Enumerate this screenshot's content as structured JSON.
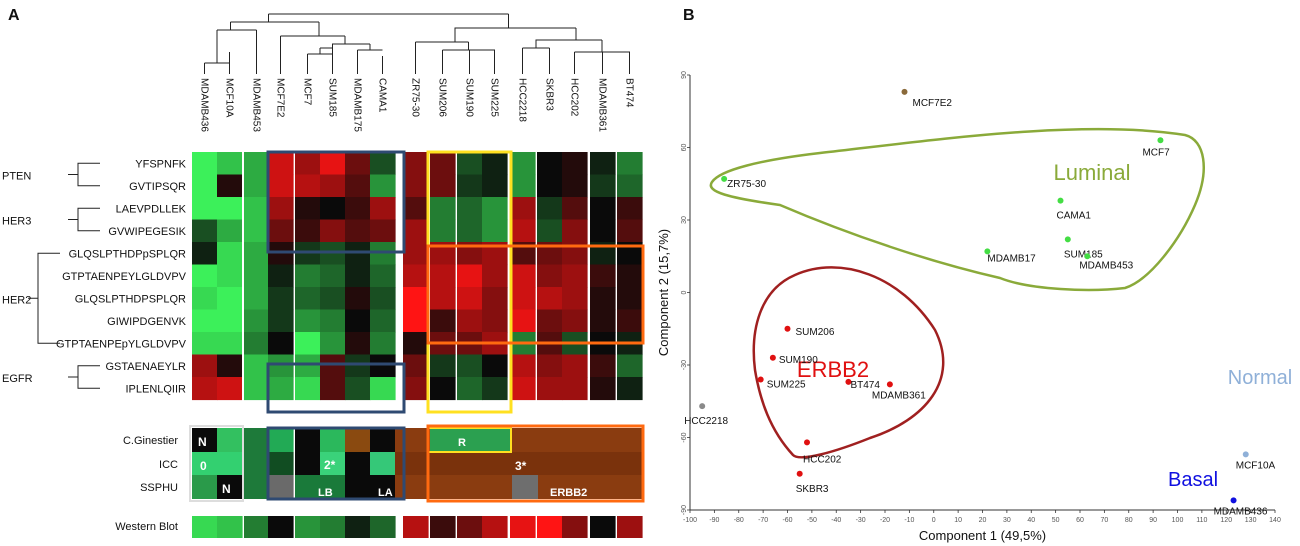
{
  "colors": {
    "green_hi": "#3cf05a",
    "green_mid": "#1e8c3a",
    "black": "#0a0a0a",
    "red_mid": "#8a1212",
    "red_hi": "#ff1a1a",
    "brown": "#8a3e12",
    "navy_box": "#2f4a72",
    "yellow_box": "#ffe020",
    "orange_box": "#ff6a10",
    "luminal": "#8aaa3a",
    "erbb2": "#e01010",
    "normal": "#8fb0d8",
    "basal": "#1010e0",
    "hull_luminal": "#8aaa3a",
    "hull_erbb2": "#a02020"
  },
  "panelA": {
    "label": "A",
    "columns": [
      "MDAMB436",
      "MCF10A",
      "MDAMB453",
      "MCF7E2",
      "MCF7",
      "SUM185",
      "MDAMB175",
      "CAMA1",
      "ZR75-30",
      "SUM206",
      "SUM190",
      "SUM225",
      "HCC2218",
      "SKBR3",
      "HCC202",
      "MDAMB361",
      "BT474"
    ],
    "groups": [
      {
        "name": "PTEN",
        "peptides": [
          "YFSPNFK",
          "GVTIPSQR"
        ]
      },
      {
        "name": "HER3",
        "peptides": [
          "LAEVPDLLEK",
          "GVWIPEGESIK"
        ]
      },
      {
        "name": "HER2",
        "peptides": [
          "GLQSLPTHDPpSPLQR",
          "GTPTAENPEYLGLDVPV",
          "GLQSLPTHDPSPLQR",
          "GIWIPDGENVK",
          "GTPTAENPEpYLGLDVPV"
        ]
      },
      {
        "name": "EGFR",
        "peptides": [
          "GSTAENAEYLR",
          "IPLENLQIIR"
        ]
      }
    ],
    "heatmap_rows": [
      [
        1.0,
        0.8,
        0.7,
        -0.8,
        -0.6,
        -0.9,
        -0.4,
        0.3,
        -0.5,
        -0.4,
        0.3,
        0.1,
        0.6,
        0.0,
        -0.1,
        0.1,
        0.5
      ],
      [
        1.0,
        -0.1,
        0.7,
        -0.8,
        -0.7,
        -0.6,
        -0.3,
        0.6,
        -0.5,
        -0.4,
        0.2,
        0.1,
        0.6,
        0.0,
        -0.1,
        0.2,
        0.4
      ],
      [
        1.0,
        1.0,
        0.8,
        -0.6,
        -0.1,
        0.0,
        -0.2,
        -0.6,
        -0.3,
        0.5,
        0.4,
        0.6,
        -0.6,
        0.2,
        -0.3,
        0.0,
        -0.2
      ],
      [
        0.3,
        0.7,
        0.8,
        -0.4,
        -0.2,
        -0.5,
        -0.3,
        -0.4,
        -0.6,
        0.5,
        0.4,
        0.6,
        -0.7,
        0.3,
        -0.5,
        0.0,
        -0.3
      ],
      [
        0.1,
        0.9,
        0.7,
        -0.1,
        0.2,
        0.3,
        0.1,
        0.5,
        -0.6,
        -0.6,
        -0.5,
        -0.6,
        -0.3,
        -0.4,
        -0.5,
        0.1,
        0.0
      ],
      [
        1.0,
        0.9,
        0.7,
        0.1,
        0.5,
        0.4,
        0.1,
        0.4,
        -0.7,
        -0.7,
        -0.9,
        -0.6,
        -0.8,
        -0.5,
        -0.6,
        -0.2,
        -0.1
      ],
      [
        0.9,
        1.0,
        0.7,
        0.2,
        0.4,
        0.3,
        -0.1,
        0.3,
        -1.0,
        -0.7,
        -0.8,
        -0.5,
        -0.8,
        -0.7,
        -0.6,
        -0.1,
        -0.1
      ],
      [
        1.0,
        1.0,
        0.6,
        0.2,
        0.6,
        0.5,
        0.0,
        0.4,
        -1.0,
        -0.2,
        -0.6,
        -0.5,
        -0.9,
        -0.4,
        -0.5,
        -0.1,
        -0.2
      ],
      [
        0.9,
        0.9,
        0.5,
        0.0,
        1.0,
        0.6,
        -0.1,
        0.5,
        -0.1,
        -0.4,
        -0.4,
        -0.6,
        0.5,
        -0.3,
        0.3,
        0.0,
        0.1
      ],
      [
        -0.6,
        -0.1,
        0.8,
        0.6,
        0.7,
        -0.3,
        0.2,
        0.0,
        -0.4,
        0.2,
        0.3,
        0.0,
        -0.7,
        -0.5,
        -0.6,
        -0.2,
        0.4
      ],
      [
        -0.7,
        -0.8,
        0.8,
        0.7,
        0.9,
        -0.3,
        0.3,
        0.9,
        -0.5,
        0.0,
        0.4,
        0.2,
        -0.8,
        -0.6,
        -0.6,
        -0.1,
        0.1
      ]
    ],
    "annotation_rows": [
      "C.Ginestier",
      "ICC",
      "SSPHU"
    ],
    "annotation_labels": {
      "normal_1": "N",
      "normal_2": "0",
      "normal_3": "N",
      "icc_lum": "2*",
      "lb": "LB",
      "la": "LA",
      "r": "R",
      "icc_her": "3*",
      "erbb2": "ERBB2"
    },
    "western_label": "Western Blot",
    "western_values": [
      0.9,
      0.8,
      0.5,
      0.0,
      0.6,
      0.5,
      0.1,
      0.4,
      -0.7,
      -0.2,
      -0.4,
      -0.7,
      -0.9,
      -1.0,
      -0.5,
      0.0,
      -0.6
    ]
  },
  "chart_data": {
    "type": "scatter",
    "panel_label": "B",
    "xlabel": "Component 1 (49,5%)",
    "ylabel": "Component 2 (15,7%)",
    "xlim": [
      -100,
      140
    ],
    "ylim": [
      -90,
      90
    ],
    "x_ticks": [
      -100,
      -90,
      -80,
      -70,
      -60,
      -50,
      -40,
      -30,
      -20,
      -10,
      0,
      10,
      20,
      30,
      40,
      50,
      60,
      70,
      80,
      90,
      100,
      110,
      120,
      130,
      140
    ],
    "y_ticks": [
      -90,
      -60,
      -30,
      0,
      30,
      60,
      90
    ],
    "x_tick_labels": [
      "-100",
      "-90",
      "-80",
      "-70",
      "-60",
      "-50",
      "-40",
      "-30",
      "-20",
      "-10",
      "0",
      "10",
      "20",
      "30",
      "40",
      "50",
      "60",
      "70",
      "80",
      "90",
      "100",
      "110",
      "120",
      "130",
      "140"
    ],
    "y_tick_labels": [
      "-90",
      "-60",
      "-30",
      "0",
      "30",
      "60",
      "90"
    ],
    "group_labels": [
      "Luminal",
      "ERBB2",
      "Normal",
      "Basal"
    ],
    "points": [
      {
        "name": "MCF7E2",
        "x": -12,
        "y": 83,
        "group": "other"
      },
      {
        "name": "MCF7",
        "x": 93,
        "y": 63,
        "group": "Luminal"
      },
      {
        "name": "ZR75-30",
        "x": -86,
        "y": 47,
        "group": "Luminal"
      },
      {
        "name": "CAMA1",
        "x": 52,
        "y": 38,
        "group": "Luminal"
      },
      {
        "name": "SUM185",
        "x": 55,
        "y": 22,
        "group": "Luminal"
      },
      {
        "name": "MDAMB17",
        "x": 22,
        "y": 17,
        "group": "Luminal"
      },
      {
        "name": "MDAMB453",
        "x": 63,
        "y": 15,
        "group": "Luminal"
      },
      {
        "name": "SUM206",
        "x": -60,
        "y": -15,
        "group": "ERBB2"
      },
      {
        "name": "SUM190",
        "x": -66,
        "y": -27,
        "group": "ERBB2"
      },
      {
        "name": "SUM225",
        "x": -71,
        "y": -36,
        "group": "ERBB2"
      },
      {
        "name": "BT474",
        "x": -35,
        "y": -37,
        "group": "ERBB2"
      },
      {
        "name": "MDAMB361",
        "x": -18,
        "y": -38,
        "group": "ERBB2"
      },
      {
        "name": "HCC2218",
        "x": -95,
        "y": -47,
        "group": "other"
      },
      {
        "name": "HCC202",
        "x": -52,
        "y": -62,
        "group": "ERBB2"
      },
      {
        "name": "SKBR3",
        "x": -55,
        "y": -75,
        "group": "ERBB2"
      },
      {
        "name": "MCF10A",
        "x": 128,
        "y": -67,
        "group": "Normal"
      },
      {
        "name": "MDAMB436",
        "x": 123,
        "y": -86,
        "group": "Basal"
      }
    ]
  }
}
